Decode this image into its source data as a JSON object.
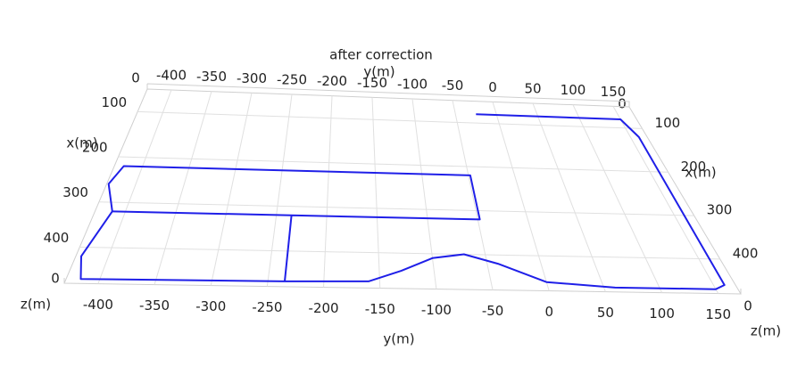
{
  "chart_data": {
    "type": "line3d",
    "title": "after correction",
    "y_label": "y(m)",
    "x_label": "x(m)",
    "z_label": "z(m)",
    "ylim": [
      -430,
      170
    ],
    "yticks": [
      -400,
      -350,
      -300,
      -250,
      -200,
      -150,
      -100,
      -50,
      0,
      50,
      100,
      150
    ],
    "xlim": [
      50,
      480
    ],
    "xticks": [
      100,
      200,
      300,
      400
    ],
    "zticks": [
      0
    ],
    "grid": true,
    "series": [
      {
        "color": "#1f1fe8",
        "y": [
          -25,
          150,
          160,
          160,
          150,
          60,
          0,
          -40,
          -70,
          -100,
          -130,
          -160,
          -235,
          -235,
          -48,
          -48,
          -420,
          -428,
          -413,
          -425,
          -417,
          -235,
          null,
          -413,
          -235
        ],
        "x": [
          80,
          80,
          120,
          460,
          470,
          470,
          460,
          420,
          400,
          410,
          440,
          465,
          468,
          320,
          320,
          220,
          220,
          260,
          320,
          420,
          470,
          468,
          null,
          320,
          320
        ]
      }
    ]
  }
}
